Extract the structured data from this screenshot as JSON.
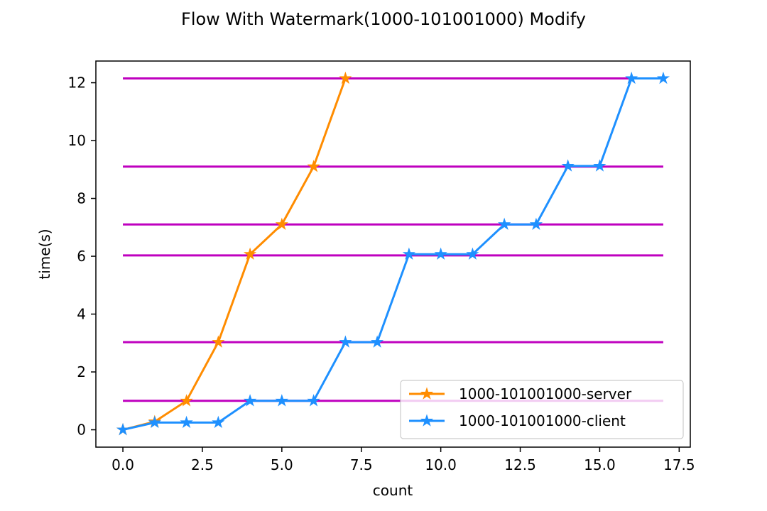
{
  "chart_data": {
    "type": "line",
    "title": "Flow With Watermark(1000-101001000) Modify",
    "xlabel": "count",
    "ylabel": "time(s)",
    "xlim": [
      -0.85,
      17.85
    ],
    "ylim": [
      -0.6,
      12.75
    ],
    "x_ticks": [
      0.0,
      2.5,
      5.0,
      7.5,
      10.0,
      12.5,
      15.0,
      17.5
    ],
    "x_tick_labels": [
      "0.0",
      "2.5",
      "5.0",
      "7.5",
      "10.0",
      "12.5",
      "15.0",
      "17.5"
    ],
    "y_ticks": [
      0,
      2,
      4,
      6,
      8,
      10,
      12
    ],
    "y_tick_labels": [
      "0",
      "2",
      "4",
      "6",
      "8",
      "10",
      "12"
    ],
    "grid": false,
    "legend_position": "lower-right",
    "reference_lines": {
      "color": "#bf00bf",
      "x_range": [
        0,
        17
      ],
      "y_values": [
        1.0,
        3.03,
        6.03,
        7.1,
        9.1,
        12.15
      ]
    },
    "series": [
      {
        "name": "1000-101001000-server",
        "color": "#ff8c00",
        "marker": "star",
        "x": [
          0,
          1,
          2,
          3,
          4,
          5,
          6,
          7
        ],
        "y": [
          0.0,
          0.28,
          1.0,
          3.03,
          6.07,
          7.1,
          9.1,
          12.15
        ]
      },
      {
        "name": "1000-101001000-client",
        "color": "#1e90ff",
        "marker": "star",
        "x": [
          0,
          1,
          2,
          3,
          4,
          5,
          6,
          7,
          8,
          9,
          10,
          11,
          12,
          13,
          14,
          15,
          16,
          17
        ],
        "y": [
          0.0,
          0.25,
          0.25,
          0.25,
          1.0,
          1.0,
          1.0,
          3.03,
          3.03,
          6.07,
          6.07,
          6.07,
          7.1,
          7.1,
          9.12,
          9.12,
          12.15,
          12.15
        ]
      }
    ]
  }
}
